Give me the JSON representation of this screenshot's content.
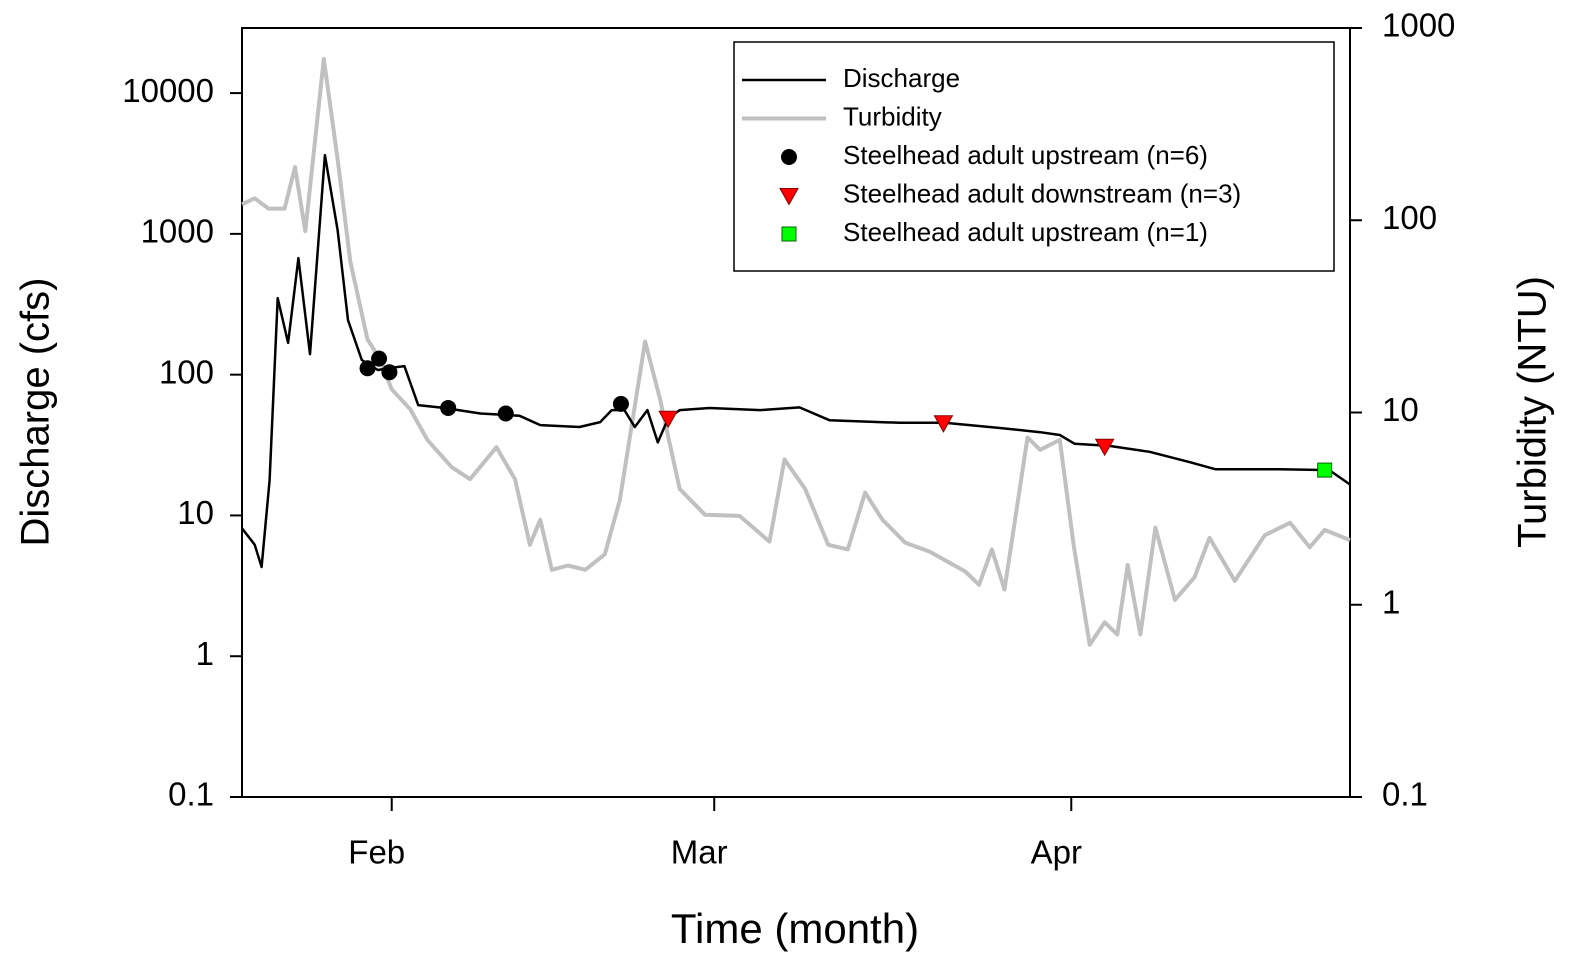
{
  "chart_data": {
    "type": "line",
    "xlabel": "Time (month)",
    "ylabel": "Discharge (cfs)",
    "y2label": "Turbidity (NTU)",
    "xlim": [
      18,
      114.2
    ],
    "xticks": [
      {
        "value": 31,
        "label": "Feb"
      },
      {
        "value": 59,
        "label": "Mar"
      },
      {
        "value": 90,
        "label": "Apr"
      }
    ],
    "ylim": [
      0.1,
      29000
    ],
    "yticks": [
      0.1,
      1,
      10,
      100,
      1000,
      10000
    ],
    "ylog": true,
    "y2lim": [
      0.1,
      1000
    ],
    "y2ticks": [
      0.1,
      1,
      10,
      100,
      1000
    ],
    "y2log": true,
    "legend": "upper right",
    "series": [
      {
        "name": "Discharge",
        "style": "line",
        "color": "#000000",
        "axis": "y",
        "x": [
          18,
          19.1,
          19.7,
          20.4,
          21.1,
          22,
          22.9,
          23.9,
          25.2,
          26.3,
          27.2,
          28.4,
          29.8,
          31,
          32.1,
          33.3,
          35.6,
          38.7,
          42.1,
          43.9,
          47.3,
          49.1,
          50.1,
          51.2,
          52.1,
          53.2,
          54.1,
          55,
          56,
          58.6,
          63,
          66.4,
          69,
          75.1,
          79,
          83.8,
          87.3,
          89,
          90.3,
          93.3,
          96.8,
          100.3,
          102.5,
          108.1,
          112.4,
          114.2
        ],
        "values": [
          8.1,
          6.2,
          4.3,
          17.8,
          350,
          168,
          673,
          140,
          3630,
          1065,
          244,
          127,
          108,
          112,
          115,
          60.8,
          58,
          53,
          51,
          43.8,
          42.5,
          46,
          56,
          56,
          42.5,
          56,
          33,
          49,
          56,
          58,
          56,
          58.5,
          47.5,
          45.5,
          45.5,
          41.8,
          39,
          37.3,
          32.3,
          31.2,
          28.3,
          23.9,
          21.3,
          21.3,
          21,
          16.6
        ]
      },
      {
        "name": "Turbidity",
        "style": "line",
        "color": "#c0c0c0",
        "axis": "y2",
        "x": [
          18,
          19.1,
          20.3,
          21.7,
          22.6,
          23.5,
          25.1,
          26.3,
          27.4,
          28.9,
          30,
          31,
          32.6,
          34.1,
          36.2,
          37.8,
          40.1,
          41.7,
          43,
          43.9,
          44.9,
          46.3,
          47.8,
          49.5,
          50.8,
          53,
          54.3,
          56,
          58.2,
          61.2,
          63.8,
          65.1,
          66.9,
          68.9,
          70.6,
          72.1,
          73.6,
          75.6,
          77.7,
          80.8,
          82,
          83.1,
          84.2,
          86.2,
          87.3,
          89,
          90.2,
          91.6,
          92.9,
          94,
          94.9,
          96,
          97.3,
          99,
          100.7,
          102,
          104.2,
          106.8,
          109,
          110.7,
          112,
          114.2
        ],
        "values": [
          121,
          130,
          115,
          115,
          189,
          87.7,
          690,
          208,
          61,
          24,
          18.9,
          13.2,
          10.4,
          7.2,
          5.2,
          4.5,
          6.6,
          4.5,
          2.05,
          2.77,
          1.52,
          1.6,
          1.52,
          1.83,
          3.5,
          23.4,
          11.7,
          4,
          2.94,
          2.9,
          2.13,
          5.7,
          4,
          2.05,
          1.94,
          3.83,
          2.77,
          2.1,
          1.89,
          1.49,
          1.27,
          1.94,
          1.2,
          7.4,
          6.4,
          7.2,
          2.05,
          0.62,
          0.81,
          0.7,
          1.61,
          0.7,
          2.52,
          1.06,
          1.39,
          2.23,
          1.33,
          2.3,
          2.67,
          1.99,
          2.45,
          2.17
        ]
      },
      {
        "name": "Steelhead adult upstream (n=6)",
        "style": "circle",
        "color": "#000000",
        "axis": "y",
        "x": [
          28.9,
          29.9,
          30.8,
          35.9,
          40.9,
          50.9
        ],
        "values": [
          111,
          130,
          104,
          58,
          53,
          62
        ]
      },
      {
        "name": "Steelhead adult downstream (n=3)",
        "style": "triangle-down",
        "color": "#ff0000",
        "axis": "y",
        "x": [
          55,
          78.9,
          92.9
        ],
        "values": [
          49,
          45.5,
          31
        ]
      },
      {
        "name": "Steelhead adult upstream (n=1)",
        "style": "square",
        "color": "#00ff00",
        "axis": "y",
        "x": [
          112
        ],
        "values": [
          21
        ]
      }
    ]
  }
}
